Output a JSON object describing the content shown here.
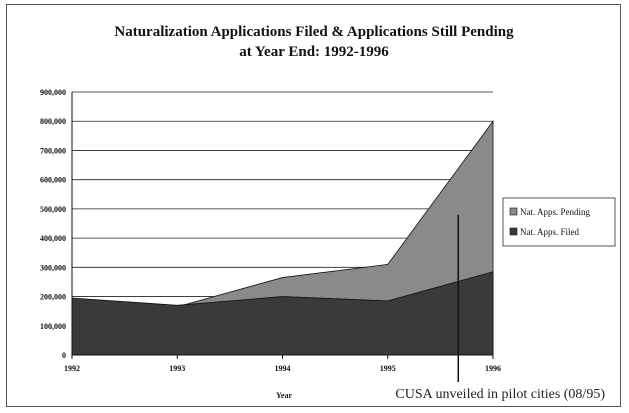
{
  "colors": {
    "background": "#ffffff",
    "pending_fill": "#8a8a8a",
    "filed_fill": "#3a3a3a",
    "gridline": "#222222",
    "border": "#555555"
  },
  "chart_data": {
    "type": "area",
    "title": "Naturalization Applications Filed & Applications Still Pending",
    "subtitle": "at Year End:  1992-1996",
    "xlabel": "Year",
    "ylabel": "",
    "categories": [
      "1992",
      "1993",
      "1994",
      "1995",
      "1996"
    ],
    "ylim": [
      0,
      900000
    ],
    "yticks": [
      "0",
      "100,000",
      "200,000",
      "300,000",
      "400,000",
      "500,000",
      "600,000",
      "700,000",
      "800,000",
      "900,000"
    ],
    "grid": true,
    "legend_position": "right",
    "series": [
      {
        "name": "Nat. Apps. Pending",
        "values": [
          190000,
          165000,
          265000,
          310000,
          800000
        ],
        "color": "#8a8a8a"
      },
      {
        "name": "Nat. Apps. Filed",
        "values": [
          195000,
          170000,
          200000,
          185000,
          285000
        ],
        "color": "#3a3a3a"
      }
    ],
    "annotation": {
      "text": "CUSA unveiled in pilot cities (08/95)",
      "x_value": 1995.67
    }
  }
}
